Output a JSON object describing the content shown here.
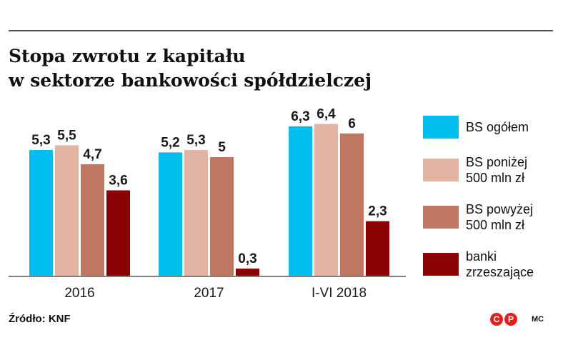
{
  "header": {
    "title_line1": "Stopa zwrotu z kapitału",
    "title_line2": "w sektorze bankowości spółdzielczej"
  },
  "chart_data": {
    "type": "bar",
    "title": "Stopa zwrotu z kapitału w sektorze bankowości spółdzielczej",
    "categories": [
      "2016",
      "2017",
      "I-VI 2018"
    ],
    "series": [
      {
        "name": "BS ogółem",
        "color": "#00bfee",
        "values": [
          5.3,
          5.2,
          6.3
        ],
        "labels": [
          "5,3",
          "5,2",
          "6,3"
        ]
      },
      {
        "name": "BS poniżej 500 mln zł",
        "color": "#e2b4a3",
        "values": [
          5.5,
          5.3,
          6.4
        ],
        "labels": [
          "5,5",
          "5,3",
          "6,4"
        ]
      },
      {
        "name": "BS powyżej 500 mln zł",
        "color": "#c07762",
        "values": [
          4.7,
          5.0,
          6.0
        ],
        "labels": [
          "4,7",
          "5",
          "6"
        ]
      },
      {
        "name": "banki zrzeszające",
        "color": "#8b0304",
        "values": [
          3.6,
          0.3,
          2.3
        ],
        "labels": [
          "3,6",
          "0,3",
          "2,3"
        ]
      }
    ],
    "ylim": [
      0,
      6.4
    ],
    "legend_position": "right",
    "grid": false
  },
  "legend": {
    "items": [
      {
        "label": "BS ogółem"
      },
      {
        "label": "BS poniżej\n500 mln zł"
      },
      {
        "label": "BS powyżej\n500 mln zł"
      },
      {
        "label": "banki\nzrzeszające"
      }
    ]
  },
  "footer": {
    "source": "Źródło: KNF",
    "logo_letters": [
      "C",
      "P"
    ],
    "author": "MC"
  }
}
